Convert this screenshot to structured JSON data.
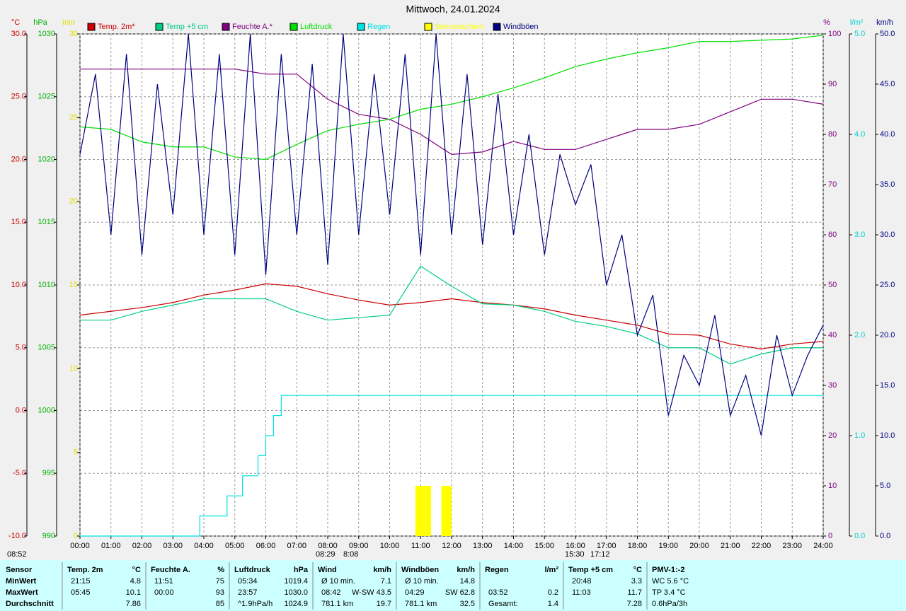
{
  "chart_data": {
    "type": "line",
    "title": "Mittwoch, 24.01.2024",
    "axes": [
      {
        "label": "°C",
        "color": "#cc0000",
        "side": "left",
        "lim": [
          -10,
          30
        ],
        "ticks": [
          {
            "value": -10,
            "label": "-10.0"
          },
          {
            "value": -5,
            "label": "-5.0"
          },
          {
            "value": 0,
            "label": "0.0"
          },
          {
            "value": 5,
            "label": "5.0"
          },
          {
            "value": 10,
            "label": "10.0"
          },
          {
            "value": 15,
            "label": "15.0"
          },
          {
            "value": 20,
            "label": "20.0"
          },
          {
            "value": 25,
            "label": "25.0"
          },
          {
            "value": 30,
            "label": "30.0"
          }
        ]
      },
      {
        "label": "hPa",
        "color": "#00b000",
        "side": "left",
        "lim": [
          990,
          1030
        ],
        "ticks": [
          990,
          995,
          1000,
          1005,
          1010,
          1015,
          1020,
          1025,
          1030
        ]
      },
      {
        "label": "min",
        "color": "#e0e000",
        "side": "left",
        "lim": [
          0,
          30
        ],
        "ticks": [
          0,
          5,
          10,
          15,
          20,
          25,
          30
        ]
      },
      {
        "label": "%",
        "color": "#800080",
        "side": "right",
        "lim": [
          0,
          100
        ],
        "ticks": [
          0,
          10,
          20,
          30,
          40,
          50,
          60,
          70,
          80,
          90,
          100
        ]
      },
      {
        "label": "l/m²",
        "color": "#00d0d0",
        "side": "right",
        "lim": [
          0,
          5
        ],
        "ticks": [
          {
            "value": 0,
            "label": "0.0"
          },
          {
            "value": 1,
            "label": "1.0"
          },
          {
            "value": 2,
            "label": "2.0"
          },
          {
            "value": 3,
            "label": "3.0"
          },
          {
            "value": 4,
            "label": "4.0"
          },
          {
            "value": 5,
            "label": "5.0"
          }
        ]
      },
      {
        "label": "km/h",
        "color": "#000080",
        "side": "right",
        "lim": [
          0,
          50
        ],
        "ticks": [
          {
            "value": 0,
            "label": "0.0"
          },
          {
            "value": 5,
            "label": "5.0"
          },
          {
            "value": 10,
            "label": "10.0"
          },
          {
            "value": 15,
            "label": "15.0"
          },
          {
            "value": 20,
            "label": "20.0"
          },
          {
            "value": 25,
            "label": "25.0"
          },
          {
            "value": 30,
            "label": "30.0"
          },
          {
            "value": 35,
            "label": "35.0"
          },
          {
            "value": 40,
            "label": "40.0"
          },
          {
            "value": 45,
            "label": "45.0"
          },
          {
            "value": 50,
            "label": "50.0"
          }
        ]
      }
    ],
    "xlim": [
      0,
      24
    ],
    "xticks": [
      {
        "value": 0,
        "label": "00:00"
      },
      {
        "value": 1,
        "label": "01:00"
      },
      {
        "value": 2,
        "label": "02:00"
      },
      {
        "value": 3,
        "label": "03:00"
      },
      {
        "value": 4,
        "label": "04:00"
      },
      {
        "value": 5,
        "label": "05:00"
      },
      {
        "value": 6,
        "label": "06:00"
      },
      {
        "value": 7,
        "label": "07:00"
      },
      {
        "value": 8,
        "label": "08:00"
      },
      {
        "value": 9,
        "label": "09:00"
      },
      {
        "value": 10,
        "label": "10:00"
      },
      {
        "value": 11,
        "label": "11:00"
      },
      {
        "value": 12,
        "label": "12:00"
      },
      {
        "value": 13,
        "label": "13:00"
      },
      {
        "value": 14,
        "label": "14:00"
      },
      {
        "value": 15,
        "label": "15:00"
      },
      {
        "value": 16,
        "label": "16:00"
      },
      {
        "value": 17,
        "label": "17:00"
      },
      {
        "value": 18,
        "label": "18:00"
      },
      {
        "value": 19,
        "label": "19:00"
      },
      {
        "value": 20,
        "label": "20:00"
      },
      {
        "value": 21,
        "label": "21:00"
      },
      {
        "value": 22,
        "label": "22:00"
      },
      {
        "value": 23,
        "label": "23:00"
      },
      {
        "value": 24,
        "label": "24:00"
      }
    ],
    "grid": true,
    "x": [
      0,
      1,
      2,
      3,
      4,
      5,
      6,
      7,
      8,
      9,
      10,
      11,
      12,
      13,
      14,
      15,
      16,
      17,
      18,
      19,
      20,
      21,
      22,
      23,
      24
    ],
    "series": [
      {
        "name": "Temp. 2m*",
        "color": "#cc0000",
        "axis": "°C",
        "type": "line",
        "values": [
          7.6,
          7.9,
          8.2,
          8.6,
          9.2,
          9.6,
          10.1,
          9.9,
          9.3,
          8.8,
          8.4,
          8.6,
          8.9,
          8.6,
          8.4,
          8.1,
          7.6,
          7.2,
          6.8,
          6.1,
          6.0,
          5.3,
          4.9,
          5.3,
          5.5
        ]
      },
      {
        "name": "Temp +5 cm",
        "color": "#00cc80",
        "axis": "°C",
        "type": "line",
        "values": [
          7.2,
          7.2,
          7.9,
          8.4,
          8.9,
          8.9,
          8.9,
          7.9,
          7.2,
          7.4,
          7.6,
          11.5,
          9.9,
          8.5,
          8.4,
          7.9,
          7.1,
          6.7,
          6.1,
          5.0,
          5.0,
          3.7,
          4.5,
          5.0,
          5.0
        ]
      },
      {
        "name": "Feuchte A.*",
        "color": "#800080",
        "axis": "%",
        "type": "line",
        "values": [
          93,
          93,
          93,
          93,
          93,
          93,
          92,
          92,
          87,
          84,
          83,
          80,
          76,
          76.5,
          78.6,
          77,
          77,
          79,
          81,
          81,
          82,
          84.5,
          87,
          87,
          86
        ]
      },
      {
        "name": "Luftdruck",
        "color": "#00e000",
        "axis": "hPa",
        "type": "line",
        "values": [
          1022.6,
          1022.4,
          1021.4,
          1021.0,
          1021.0,
          1020.2,
          1020.0,
          1021.2,
          1022.3,
          1022.8,
          1023.2,
          1024.0,
          1024.4,
          1025.0,
          1025.7,
          1026.5,
          1027.4,
          1028.0,
          1028.5,
          1028.9,
          1029.4,
          1029.4,
          1029.5,
          1029.6,
          1029.9
        ]
      },
      {
        "name": "Regen",
        "color": "#00e0e0",
        "axis": "l/m²",
        "type": "step",
        "x": [
          0,
          3.87,
          4.75,
          5.25,
          5.75,
          6.0,
          6.25,
          6.5,
          24
        ],
        "values": [
          0,
          0.2,
          0.4,
          0.6,
          0.8,
          1.0,
          1.2,
          1.4,
          1.4
        ]
      },
      {
        "name": "Sonnenschein",
        "color": "#ffff00",
        "axis": "min",
        "type": "bar",
        "x": [
          10.83,
          11.0,
          11.17,
          11.67,
          11.83
        ],
        "values": [
          3,
          3,
          3,
          3,
          3
        ]
      },
      {
        "name": "Windböen",
        "color": "#000080",
        "axis": "km/h",
        "type": "line",
        "x": [
          0,
          0.5,
          1,
          1.5,
          2,
          2.5,
          3,
          3.5,
          4,
          4.5,
          5,
          5.5,
          6,
          6.5,
          7,
          7.5,
          8,
          8.5,
          9,
          9.5,
          10,
          10.5,
          11,
          11.5,
          12,
          12.5,
          13,
          13.5,
          14,
          14.5,
          15,
          15.5,
          16,
          16.5,
          17,
          17.5,
          18,
          18.5,
          19,
          19.5,
          20,
          20.5,
          21,
          21.5,
          22,
          22.5,
          23,
          23.5,
          24
        ],
        "values": [
          38,
          46,
          30,
          48,
          28,
          45,
          32,
          50,
          30,
          48,
          28,
          50,
          26,
          48,
          30,
          47,
          27,
          50,
          30,
          46,
          32,
          48,
          28,
          50,
          30,
          46,
          29,
          44,
          30,
          40,
          28,
          38,
          33,
          37,
          25,
          30,
          20,
          24,
          12,
          18,
          15,
          22,
          12,
          16,
          10,
          20,
          14,
          18,
          21
        ]
      }
    ],
    "astro_labels": [
      "08:52",
      "08:29",
      "8:08",
      "15:30",
      "17:12"
    ]
  },
  "table": {
    "row_labels": [
      "Sensor",
      "MinWert",
      "MaxWert",
      "Durchschnitt"
    ],
    "columns": [
      {
        "header": "Temp. 2m",
        "unit": "°C",
        "cells": [
          [
            "21:15",
            "4.8"
          ],
          [
            "05:45",
            "10.1"
          ],
          [
            null,
            "7.86"
          ]
        ]
      },
      {
        "header": "Feuchte A.",
        "unit": "%",
        "cells": [
          [
            "11:51",
            "75"
          ],
          [
            "00:00",
            "93"
          ],
          [
            null,
            "85"
          ]
        ]
      },
      {
        "header": "Luftdruck",
        "unit": "hPa",
        "cells": [
          [
            "05:34",
            "1019.4"
          ],
          [
            "23:57",
            "1030.0"
          ],
          [
            "^1.9hPa/h",
            "1024.9"
          ]
        ]
      },
      {
        "header": "Wind",
        "unit": "km/h",
        "cells": [
          [
            "Ø 10 min.",
            "7.1"
          ],
          [
            "08:42",
            "W-SW 43.5"
          ],
          [
            "781.1 km",
            "19.7"
          ]
        ]
      },
      {
        "header": "Windböen",
        "unit": "km/h",
        "cells": [
          [
            "Ø 10 min.",
            "14.8"
          ],
          [
            "04:29",
            "SW 62.8"
          ],
          [
            "781.1 km",
            "32.5"
          ]
        ]
      },
      {
        "header": "Regen",
        "unit": "l/m²",
        "cells": [
          [
            null,
            null
          ],
          [
            "03:52",
            "0.2"
          ],
          [
            "Gesamt:",
            "1.4"
          ]
        ]
      },
      {
        "header": "Temp +5 cm",
        "unit": "°C",
        "cells": [
          [
            "20:48",
            "3.3"
          ],
          [
            "11:03",
            "11.7"
          ],
          [
            null,
            "7.28"
          ]
        ]
      },
      {
        "header": "PMV-1:-2",
        "cells": [
          [
            "WC 5.6 °C"
          ],
          [
            "TP 3.4 °C"
          ],
          [
            "0.6hPa/3h"
          ]
        ]
      }
    ]
  }
}
